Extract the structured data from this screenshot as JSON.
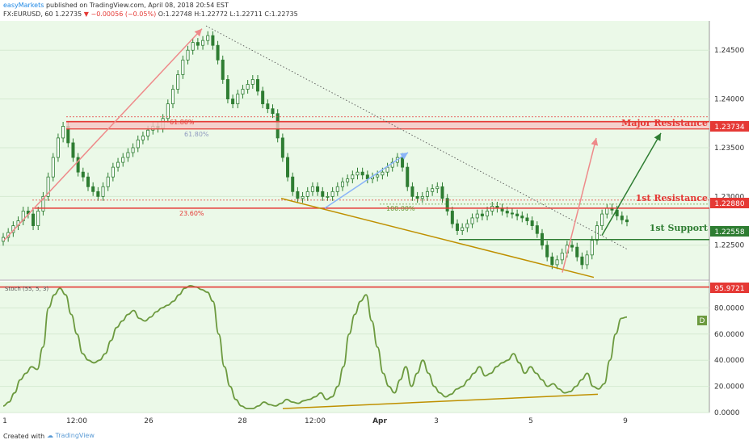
{
  "header": {
    "author": "easyMarkets",
    "published": "published on TradingView.com, April 08, 2018 20:54 EST",
    "symbol": "FX:EURUSD, 60",
    "last": "1.22735",
    "change": "−0.00056 (−0.05%)",
    "ohlc": "O:1.22748 H:1.22772 L:1.22711 C:1.22735"
  },
  "footer": {
    "created": "Created with",
    "logo": "TradingView"
  },
  "colors": {
    "bg": "#ebf9e8",
    "candle": "#2e7d32",
    "stoch": "#6c9a3f",
    "red": "#e53935",
    "green": "#2e7d32",
    "gold": "#bf9000",
    "pink": "#ee8a8a",
    "blue": "#8ab4f8",
    "dark": "#222"
  },
  "chart_data": [
    {
      "type": "candlestick",
      "title": "",
      "ylim": [
        1.2215,
        1.248
      ],
      "price_ticks": [
        "1.24500",
        "1.24000",
        "1.23500",
        "1.23000",
        "1.22500"
      ],
      "x_ticks": [
        "1",
        "12:00",
        "26",
        "28",
        "12:00",
        "Apr",
        "3",
        "5",
        "9"
      ],
      "series": [
        {
          "values": [
            1.2258,
            1.2263,
            1.227,
            1.2275,
            1.2285,
            1.2282,
            1.227,
            1.2285,
            1.23,
            1.232,
            1.234,
            1.236,
            1.2372,
            1.2355,
            1.234,
            1.2325,
            1.232,
            1.231,
            1.2305,
            1.23,
            1.231,
            1.232,
            1.233,
            1.2335,
            1.234,
            1.2345,
            1.235,
            1.2358,
            1.2362,
            1.2368,
            1.2372,
            1.237,
            1.238,
            1.2395,
            1.241,
            1.2425,
            1.244,
            1.245,
            1.2458,
            1.2455,
            1.246,
            1.2465,
            1.2455,
            1.244,
            1.242,
            1.24,
            1.2395,
            1.2405,
            1.241,
            1.2415,
            1.242,
            1.2408,
            1.2395,
            1.239,
            1.2385,
            1.236,
            1.234,
            1.232,
            1.2305,
            1.2298,
            1.23,
            1.2305,
            1.231,
            1.2305,
            1.23,
            1.23,
            1.2305,
            1.231,
            1.2315,
            1.2318,
            1.2322,
            1.2325,
            1.2322,
            1.2318,
            1.232,
            1.2322,
            1.2325,
            1.233,
            1.2335,
            1.234,
            1.233,
            1.231,
            1.23,
            1.2298,
            1.23,
            1.2305,
            1.2308,
            1.231,
            1.2298,
            1.2285,
            1.2272,
            1.2265,
            1.2268,
            1.2272,
            1.2278,
            1.2282,
            1.228,
            1.2285,
            1.229,
            1.2288,
            1.2285,
            1.2283,
            1.2282,
            1.228,
            1.2278,
            1.2275,
            1.227,
            1.2262,
            1.225,
            1.2238,
            1.223,
            1.2235,
            1.2242,
            1.225,
            1.2248,
            1.2238,
            1.223,
            1.224,
            1.2255,
            1.227,
            1.2282,
            1.2288,
            1.2286,
            1.228,
            1.2276,
            1.2274
          ]
        }
      ]
    },
    {
      "type": "line",
      "title": "",
      "indicator_label": "Stoch (55, 5, 3)",
      "ylim": [
        0,
        100
      ],
      "y_ticks": [
        "80.0000",
        "60.0000",
        "40.0000",
        "20.0000",
        "0.0000"
      ],
      "series": [
        {
          "values": [
            5,
            8,
            15,
            25,
            30,
            35,
            33,
            50,
            80,
            90,
            95,
            90,
            75,
            60,
            45,
            40,
            38,
            40,
            45,
            55,
            65,
            70,
            75,
            78,
            72,
            70,
            73,
            77,
            80,
            82,
            85,
            90,
            95,
            97,
            96,
            94,
            92,
            85,
            60,
            35,
            20,
            10,
            5,
            3,
            3,
            5,
            8,
            6,
            5,
            7,
            10,
            8,
            7,
            9,
            10,
            12,
            15,
            10,
            12,
            20,
            35,
            60,
            75,
            85,
            90,
            70,
            50,
            30,
            20,
            15,
            25,
            35,
            20,
            30,
            40,
            30,
            20,
            15,
            12,
            14,
            18,
            20,
            25,
            30,
            35,
            28,
            30,
            35,
            38,
            40,
            45,
            38,
            30,
            35,
            30,
            25,
            20,
            22,
            18,
            15,
            16,
            20,
            25,
            30,
            20,
            18,
            22,
            40,
            60,
            72,
            73
          ]
        }
      ]
    }
  ],
  "levels": {
    "major_resistance": {
      "label": "Major Resistance",
      "value": "1.23734"
    },
    "first_resistance": {
      "label": "1st Resistance",
      "value": "1.22880"
    },
    "first_support": {
      "label": "1st Support",
      "value": "1.22558"
    },
    "fib_618_a": "61.80%",
    "fib_618_b": "61.80%",
    "fib_236": "23.60%",
    "fib_100": "100.00%",
    "stoch_level": "95.9721",
    "stoch_badge": "D"
  }
}
